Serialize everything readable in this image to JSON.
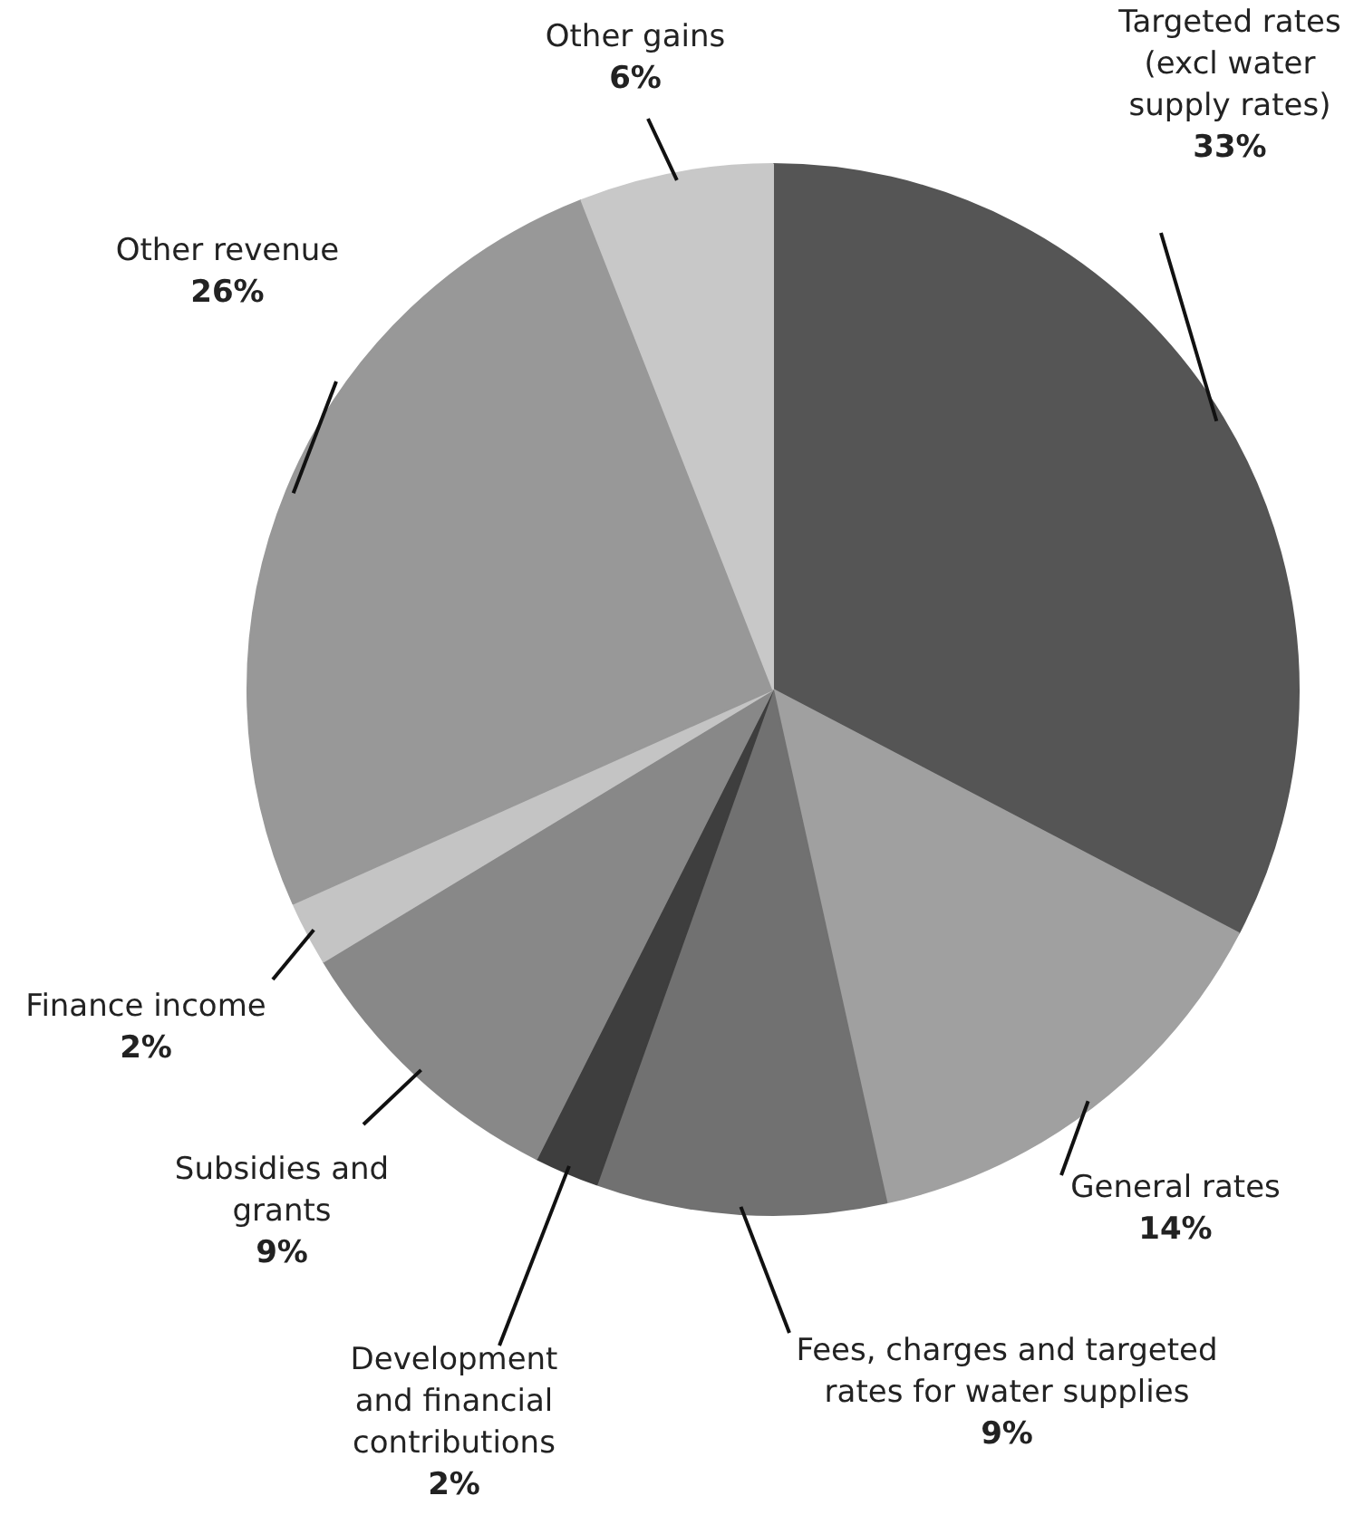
{
  "chart_data": {
    "type": "pie",
    "categories": [
      "Targeted rates (excl water supply rates)",
      "General rates",
      "Fees, charges and targeted rates for water supplies",
      "Development and financial contributions",
      "Subsidies and grants",
      "Finance income",
      "Other revenue",
      "Other gains"
    ],
    "values": [
      33,
      14,
      9,
      2,
      9,
      2,
      26,
      6
    ],
    "value_labels": [
      "33%",
      "14%",
      "9%",
      "2%",
      "9%",
      "2%",
      "26%",
      "6%"
    ],
    "colors": [
      "#555555",
      "#a0a0a0",
      "#717171",
      "#3e3e3e",
      "#888888",
      "#c4c4c4",
      "#989898",
      "#c8c8c8"
    ]
  }
}
